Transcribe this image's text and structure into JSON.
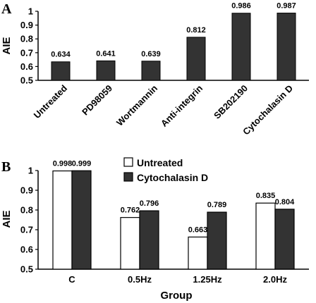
{
  "chart_data": [
    {
      "panel": "A",
      "type": "bar",
      "ylabel": "AIE",
      "xlabel": "",
      "ylim": [
        0.5,
        1.0
      ],
      "yticks": [
        "0.5",
        "0.6",
        "0.7",
        "0.8",
        "0.9",
        "1"
      ],
      "categories": [
        "Untreated",
        "PD98059",
        "Wortmannin",
        "Anti-integrin",
        "SB202190",
        "Cytochalasin D"
      ],
      "values": [
        0.634,
        0.641,
        0.639,
        0.812,
        0.986,
        0.987
      ],
      "value_labels": [
        "0.634",
        "0.641",
        "0.639",
        "0.812",
        "0.986",
        "0.987"
      ],
      "bar_color": "#333333",
      "grid": false
    },
    {
      "panel": "B",
      "type": "bar",
      "ylabel": "AIE",
      "xlabel": "Group",
      "ylim": [
        0.5,
        1.0
      ],
      "yticks": [
        "0.5",
        "0.6",
        "0.7",
        "0.8",
        "0.9",
        "1"
      ],
      "categories": [
        "C",
        "0.5Hz",
        "1.25Hz",
        "2.0Hz"
      ],
      "series": [
        {
          "name": "Untreated",
          "color": "#ffffff",
          "values": [
            0.998,
            0.762,
            0.663,
            0.835
          ],
          "value_labels": [
            "0.998",
            "0.762",
            "0.663",
            "0.835"
          ]
        },
        {
          "name": "Cytochalasin D",
          "color": "#333333",
          "values": [
            0.999,
            0.796,
            0.789,
            0.804
          ],
          "value_labels": [
            "0.999",
            "0.796",
            "0.789",
            "0.804"
          ]
        }
      ],
      "legend": "top-center",
      "grid": false
    }
  ]
}
